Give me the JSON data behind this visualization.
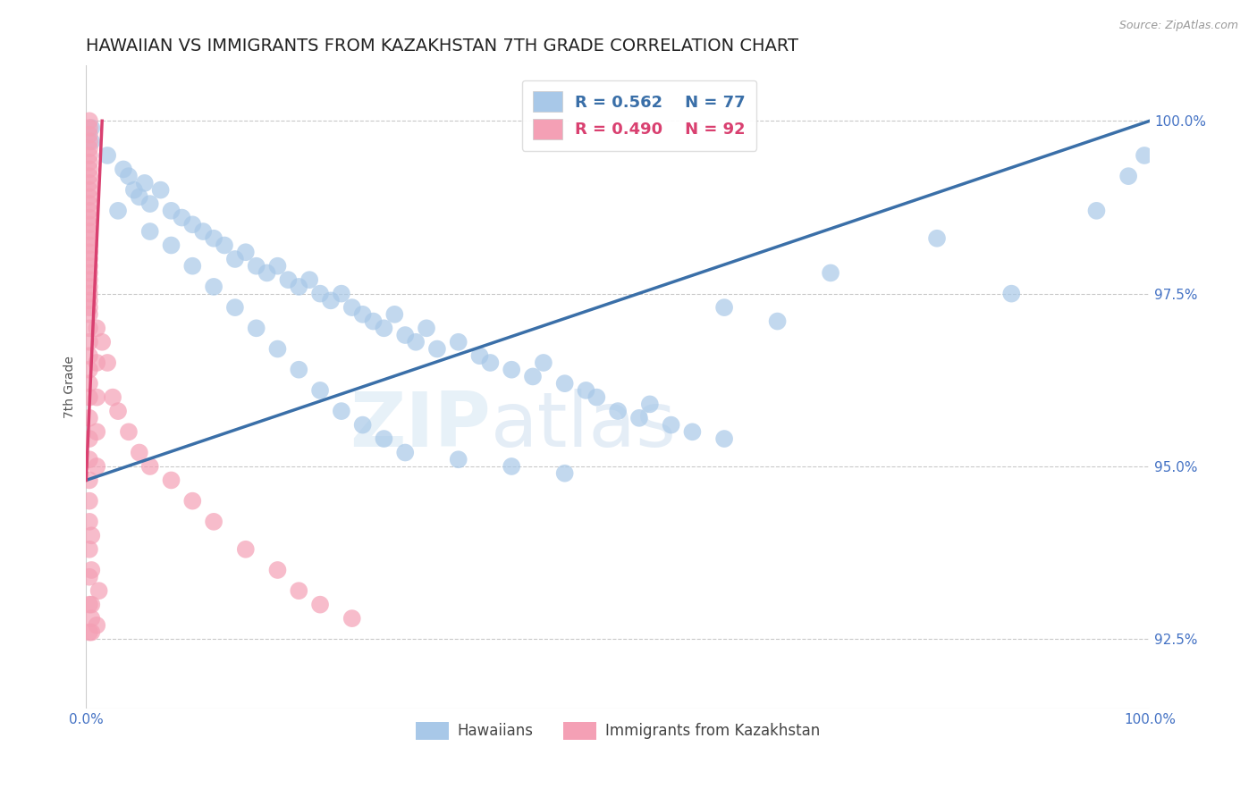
{
  "title": "HAWAIIAN VS IMMIGRANTS FROM KAZAKHSTAN 7TH GRADE CORRELATION CHART",
  "source_text": "Source: ZipAtlas.com",
  "ylabel": "7th Grade",
  "x_min": 0.0,
  "x_max": 100.0,
  "y_min": 91.5,
  "y_max": 100.8,
  "y_ticks": [
    92.5,
    95.0,
    97.5,
    100.0
  ],
  "y_tick_labels": [
    "92.5%",
    "95.0%",
    "97.5%",
    "100.0%"
  ],
  "color_blue": "#a8c8e8",
  "color_pink": "#f4a0b5",
  "color_blue_line": "#3a6fa8",
  "color_pink_line": "#d94070",
  "legend_r_blue": "R = 0.562",
  "legend_n_blue": "N = 77",
  "legend_r_pink": "R = 0.490",
  "legend_n_pink": "N = 92",
  "legend_label_blue": "Hawaiians",
  "legend_label_pink": "Immigrants from Kazakhstan",
  "title_fontsize": 14,
  "axis_label_fontsize": 10,
  "tick_fontsize": 11,
  "watermark_zip": "ZIP",
  "watermark_atlas": "atlas",
  "blue_line_x": [
    0.0,
    100.0
  ],
  "blue_line_y": [
    94.8,
    100.0
  ],
  "pink_line_x": [
    0.0,
    1.5
  ],
  "pink_line_y": [
    94.8,
    100.0
  ],
  "blue_dots": [
    [
      0.5,
      99.9
    ],
    [
      0.5,
      99.7
    ],
    [
      2.0,
      99.5
    ],
    [
      3.5,
      99.3
    ],
    [
      4.0,
      99.2
    ],
    [
      4.5,
      99.0
    ],
    [
      5.0,
      98.9
    ],
    [
      5.5,
      99.1
    ],
    [
      6.0,
      98.8
    ],
    [
      7.0,
      99.0
    ],
    [
      8.0,
      98.7
    ],
    [
      9.0,
      98.6
    ],
    [
      10.0,
      98.5
    ],
    [
      11.0,
      98.4
    ],
    [
      12.0,
      98.3
    ],
    [
      13.0,
      98.2
    ],
    [
      14.0,
      98.0
    ],
    [
      15.0,
      98.1
    ],
    [
      16.0,
      97.9
    ],
    [
      17.0,
      97.8
    ],
    [
      18.0,
      97.9
    ],
    [
      19.0,
      97.7
    ],
    [
      20.0,
      97.6
    ],
    [
      21.0,
      97.7
    ],
    [
      22.0,
      97.5
    ],
    [
      23.0,
      97.4
    ],
    [
      24.0,
      97.5
    ],
    [
      25.0,
      97.3
    ],
    [
      26.0,
      97.2
    ],
    [
      27.0,
      97.1
    ],
    [
      28.0,
      97.0
    ],
    [
      29.0,
      97.2
    ],
    [
      30.0,
      96.9
    ],
    [
      31.0,
      96.8
    ],
    [
      32.0,
      97.0
    ],
    [
      33.0,
      96.7
    ],
    [
      35.0,
      96.8
    ],
    [
      37.0,
      96.6
    ],
    [
      38.0,
      96.5
    ],
    [
      40.0,
      96.4
    ],
    [
      42.0,
      96.3
    ],
    [
      43.0,
      96.5
    ],
    [
      45.0,
      96.2
    ],
    [
      47.0,
      96.1
    ],
    [
      48.0,
      96.0
    ],
    [
      50.0,
      95.8
    ],
    [
      52.0,
      95.7
    ],
    [
      53.0,
      95.9
    ],
    [
      55.0,
      95.6
    ],
    [
      57.0,
      95.5
    ],
    [
      60.0,
      95.4
    ],
    [
      3.0,
      98.7
    ],
    [
      6.0,
      98.4
    ],
    [
      8.0,
      98.2
    ],
    [
      10.0,
      97.9
    ],
    [
      12.0,
      97.6
    ],
    [
      14.0,
      97.3
    ],
    [
      16.0,
      97.0
    ],
    [
      18.0,
      96.7
    ],
    [
      20.0,
      96.4
    ],
    [
      22.0,
      96.1
    ],
    [
      24.0,
      95.8
    ],
    [
      26.0,
      95.6
    ],
    [
      28.0,
      95.4
    ],
    [
      30.0,
      95.2
    ],
    [
      35.0,
      95.1
    ],
    [
      40.0,
      95.0
    ],
    [
      45.0,
      94.9
    ],
    [
      60.0,
      97.3
    ],
    [
      65.0,
      97.1
    ],
    [
      70.0,
      97.8
    ],
    [
      80.0,
      98.3
    ],
    [
      87.0,
      97.5
    ],
    [
      95.0,
      98.7
    ],
    [
      98.0,
      99.2
    ],
    [
      99.5,
      99.5
    ]
  ],
  "pink_dots": [
    [
      0.3,
      100.0
    ],
    [
      0.3,
      99.9
    ],
    [
      0.3,
      99.8
    ],
    [
      0.3,
      99.7
    ],
    [
      0.3,
      99.6
    ],
    [
      0.3,
      99.5
    ],
    [
      0.3,
      99.4
    ],
    [
      0.3,
      99.3
    ],
    [
      0.3,
      99.2
    ],
    [
      0.3,
      99.1
    ],
    [
      0.3,
      99.0
    ],
    [
      0.3,
      98.9
    ],
    [
      0.3,
      98.8
    ],
    [
      0.3,
      98.7
    ],
    [
      0.3,
      98.6
    ],
    [
      0.3,
      98.5
    ],
    [
      0.3,
      98.4
    ],
    [
      0.3,
      98.3
    ],
    [
      0.3,
      98.2
    ],
    [
      0.3,
      98.1
    ],
    [
      0.3,
      98.0
    ],
    [
      0.3,
      97.9
    ],
    [
      0.3,
      97.8
    ],
    [
      0.3,
      97.7
    ],
    [
      0.3,
      97.6
    ],
    [
      0.3,
      97.5
    ],
    [
      0.3,
      97.4
    ],
    [
      0.3,
      97.3
    ],
    [
      0.3,
      97.2
    ],
    [
      0.3,
      97.0
    ],
    [
      0.3,
      96.8
    ],
    [
      0.3,
      96.6
    ],
    [
      0.3,
      96.4
    ],
    [
      0.3,
      96.2
    ],
    [
      0.3,
      96.0
    ],
    [
      0.3,
      95.7
    ],
    [
      0.3,
      95.4
    ],
    [
      0.3,
      95.1
    ],
    [
      0.3,
      94.8
    ],
    [
      0.3,
      94.5
    ],
    [
      0.3,
      94.2
    ],
    [
      0.3,
      93.8
    ],
    [
      0.3,
      93.4
    ],
    [
      0.3,
      93.0
    ],
    [
      0.3,
      92.6
    ],
    [
      1.0,
      97.0
    ],
    [
      1.0,
      96.5
    ],
    [
      1.0,
      96.0
    ],
    [
      1.0,
      95.5
    ],
    [
      1.0,
      95.0
    ],
    [
      1.5,
      96.8
    ],
    [
      2.0,
      96.5
    ],
    [
      2.5,
      96.0
    ],
    [
      3.0,
      95.8
    ],
    [
      4.0,
      95.5
    ],
    [
      5.0,
      95.2
    ],
    [
      6.0,
      95.0
    ],
    [
      8.0,
      94.8
    ],
    [
      10.0,
      94.5
    ],
    [
      12.0,
      94.2
    ],
    [
      15.0,
      93.8
    ],
    [
      18.0,
      93.5
    ],
    [
      20.0,
      93.2
    ],
    [
      0.5,
      94.0
    ],
    [
      0.5,
      93.5
    ],
    [
      0.5,
      93.0
    ],
    [
      0.5,
      92.8
    ],
    [
      0.5,
      92.6
    ],
    [
      1.0,
      92.7
    ],
    [
      1.2,
      93.2
    ],
    [
      22.0,
      93.0
    ],
    [
      25.0,
      92.8
    ]
  ]
}
